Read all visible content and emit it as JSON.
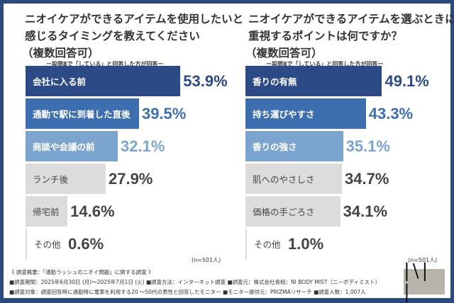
{
  "colors": {
    "dark": "#2c4a86",
    "mid": "#3c6eb0",
    "light": "#7ba4cf",
    "grey": "#dcdcdc",
    "frame": "#2b4a7e"
  },
  "chart_data": [
    {
      "type": "bar",
      "orientation": "horizontal",
      "title": "ニオイケアができるアイテムを使用したいと感じるタイミングを教えてください",
      "title_lines": [
        "ニオイケアができるアイテムを使用したいと",
        "感じるタイミングを教えてください",
        "（複数回答可）"
      ],
      "subtitle": "ー設問8で「している」と回答した方が回答ー",
      "categories": [
        "会社に入る前",
        "通動で駅に到着した直後",
        "商談や会議の前",
        "ランチ後",
        "帰宅前",
        "その他"
      ],
      "values": [
        53.9,
        39.5,
        32.1,
        27.9,
        14.6,
        0.6
      ],
      "value_labels": [
        "53.9%",
        "39.5%",
        "32.1%",
        "27.9%",
        "14.6%",
        "0.6%"
      ],
      "n": "(n=501人)",
      "xlim": [
        0,
        60
      ]
    },
    {
      "type": "bar",
      "orientation": "horizontal",
      "title": "ニオイケアができるアイテムを選ぶときに重視するポイントは何ですか？",
      "title_lines": [
        "ニオイケアができるアイテムを選ぶときに",
        "重視するポイントは何ですか？",
        "（複数回答可）"
      ],
      "subtitle": "ー設問8で「している」と回答した方が回答ー",
      "categories": [
        "香りの有無",
        "持ち運びやすさ",
        "香りの強さ",
        "肌へのやさしさ",
        "価格の手ごろさ",
        "その他"
      ],
      "values": [
        49.1,
        43.3,
        35.1,
        34.7,
        34.1,
        1.0
      ],
      "value_labels": [
        "49.1%",
        "43.3%",
        "35.1%",
        "34.7%",
        "34.1%",
        "1.0%"
      ],
      "n": "(n=501人)",
      "xlim": [
        0,
        60
      ]
    }
  ],
  "footer": {
    "lines": [
      "《 調査概要：「通勤ラッシュのニオイ問題」に関する調査 》",
      "■調査期間：2025年6月30日 (月)〜2025年7月1日 (火)  ■調査方法：インターネット調査  ■調査元：株式会社青組：NI BODY MIST（ニーボディミスト）",
      "■調査対象：調査回答時に通勤時に電車を利用する20 〜50代の男性と回答したモニター  ■モニター提供元：PRIZMAリサーチ  ■調査人数：1,007人"
    ]
  },
  "logo": {
    "text": "NI"
  }
}
